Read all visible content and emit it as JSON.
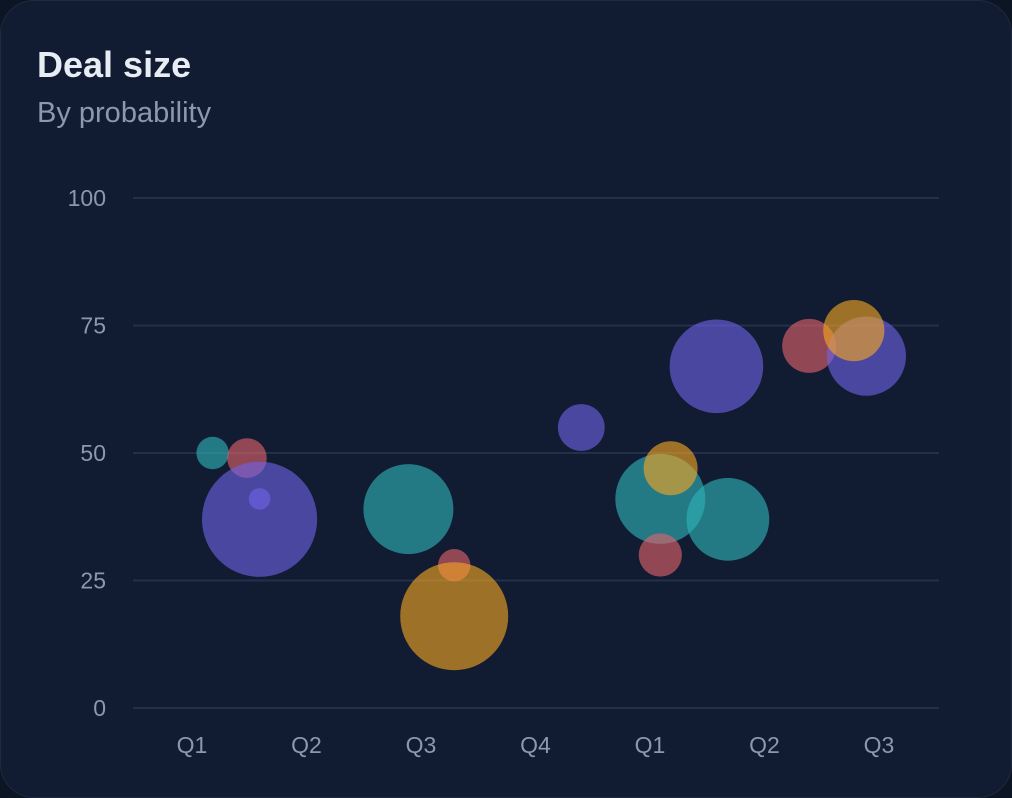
{
  "card": {
    "title": "Deal size",
    "subtitle": "By probability"
  },
  "chart_data": {
    "type": "scatter",
    "variant": "bubble",
    "title": "Deal size",
    "subtitle": "By probability",
    "xlabel": "",
    "ylabel": "",
    "x_categories": [
      "Q1",
      "Q2",
      "Q3",
      "Q4",
      "Q1",
      "Q2",
      "Q3"
    ],
    "ylim": [
      0,
      100
    ],
    "y_ticks": [
      0,
      25,
      50,
      75,
      100
    ],
    "grid": true,
    "legend": "none",
    "colors": [
      "#2fb3b8",
      "#e2626a",
      "#6e63e6",
      "#f5a623"
    ],
    "series": [
      {
        "color_index": 0,
        "points": [
          {
            "x": 0.18,
            "y": 50,
            "size": 9
          },
          {
            "x": 1.89,
            "y": 39,
            "size": 25
          },
          {
            "x": 4.09,
            "y": 41,
            "size": 25
          },
          {
            "x": 4.68,
            "y": 37,
            "size": 23
          }
        ]
      },
      {
        "color_index": 1,
        "points": [
          {
            "x": 0.48,
            "y": 49,
            "size": 11
          },
          {
            "x": 2.29,
            "y": 28,
            "size": 9
          },
          {
            "x": 4.09,
            "y": 30,
            "size": 12
          },
          {
            "x": 5.39,
            "y": 71,
            "size": 15
          }
        ]
      },
      {
        "color_index": 2,
        "points": [
          {
            "x": 0.59,
            "y": 41,
            "size": 6
          },
          {
            "x": 0.59,
            "y": 37,
            "size": 32
          },
          {
            "x": 3.4,
            "y": 55,
            "size": 13
          },
          {
            "x": 4.58,
            "y": 67,
            "size": 26
          },
          {
            "x": 5.89,
            "y": 69,
            "size": 22
          }
        ]
      },
      {
        "color_index": 3,
        "points": [
          {
            "x": 2.29,
            "y": 18,
            "size": 30
          },
          {
            "x": 4.18,
            "y": 47,
            "size": 15
          },
          {
            "x": 5.78,
            "y": 74,
            "size": 17
          }
        ]
      }
    ]
  }
}
